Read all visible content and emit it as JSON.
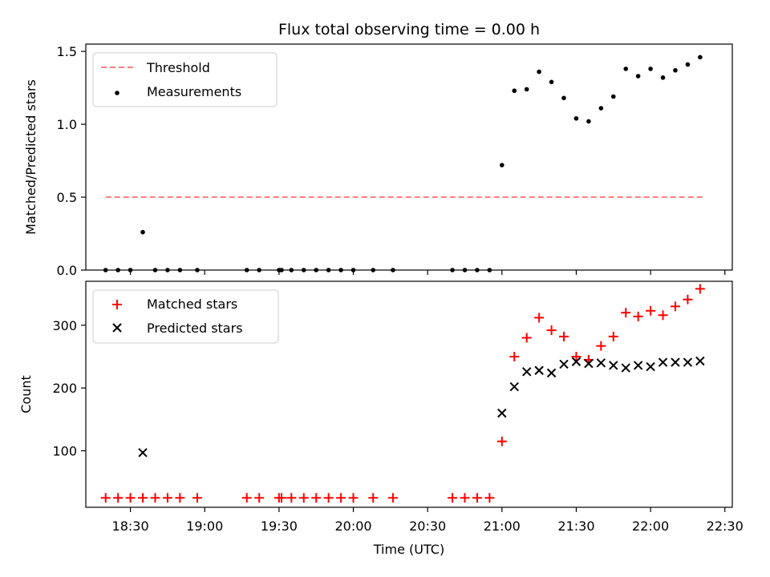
{
  "title": "Flux total observing time = 0.00 h",
  "xlabel": "Time (UTC)",
  "chart_data": [
    {
      "type": "scatter",
      "panel": "top",
      "ylabel": "Matched/Predicted stars",
      "ylim": [
        0,
        1.55
      ],
      "yticks": [
        0.0,
        0.5,
        1.0,
        1.5
      ],
      "ytick_labels": [
        "0.0",
        "0.5",
        "1.0",
        "1.5"
      ],
      "grid": false,
      "legend_position": "top-left",
      "legend": [
        "Threshold",
        "Measurements"
      ],
      "threshold": {
        "name": "Threshold",
        "y": 0.5,
        "x_start": "18:20",
        "x_end": "22:21",
        "color": "#ff7f7f"
      },
      "series": [
        {
          "name": "Measurements",
          "color": "#000000",
          "x": [
            "18:20",
            "18:25",
            "18:30",
            "18:35",
            "18:40",
            "18:45",
            "18:50",
            "18:57",
            "19:17",
            "19:22",
            "19:30",
            "19:31",
            "19:35",
            "19:40",
            "19:45",
            "19:50",
            "19:55",
            "20:00",
            "20:08",
            "20:16",
            "20:40",
            "20:45",
            "20:50",
            "20:55",
            "21:00",
            "21:05",
            "21:10",
            "21:15",
            "21:20",
            "21:25",
            "21:30",
            "21:35",
            "21:40",
            "21:45",
            "21:50",
            "21:55",
            "22:00",
            "22:05",
            "22:10",
            "22:15",
            "22:20"
          ],
          "y": [
            0,
            0,
            0,
            0.26,
            0,
            0,
            0,
            0,
            0,
            0,
            0,
            0,
            0,
            0,
            0,
            0,
            0,
            0,
            0,
            0,
            0,
            0,
            0,
            0,
            0.72,
            1.23,
            1.24,
            1.36,
            1.29,
            1.18,
            1.04,
            1.02,
            1.11,
            1.19,
            1.38,
            1.33,
            1.38,
            1.32,
            1.37,
            1.41,
            1.46
          ]
        }
      ]
    },
    {
      "type": "scatter",
      "panel": "bottom",
      "ylabel": "Count",
      "ylim": [
        10,
        370
      ],
      "yticks": [
        100,
        200,
        300
      ],
      "ytick_labels": [
        "100",
        "200",
        "300"
      ],
      "grid": false,
      "legend_position": "top-left",
      "legend": [
        "Matched stars",
        "Predicted stars"
      ],
      "series": [
        {
          "name": "Matched stars",
          "marker": "+",
          "color": "#ff0000",
          "x": [
            "18:20",
            "18:25",
            "18:30",
            "18:35",
            "18:40",
            "18:45",
            "18:50",
            "18:57",
            "19:17",
            "19:22",
            "19:30",
            "19:31",
            "19:35",
            "19:40",
            "19:45",
            "19:50",
            "19:55",
            "20:00",
            "20:08",
            "20:16",
            "20:40",
            "20:45",
            "20:50",
            "20:55",
            "21:00",
            "21:05",
            "21:10",
            "21:15",
            "21:20",
            "21:25",
            "21:30",
            "21:35",
            "21:40",
            "21:45",
            "21:50",
            "21:55",
            "22:00",
            "22:05",
            "22:10",
            "22:15",
            "22:20"
          ],
          "y": [
            25,
            25,
            25,
            25,
            25,
            25,
            25,
            25,
            25,
            25,
            25,
            25,
            25,
            25,
            25,
            25,
            25,
            25,
            25,
            25,
            25,
            25,
            25,
            25,
            115,
            250,
            280,
            312,
            292,
            282,
            250,
            245,
            267,
            282,
            320,
            314,
            323,
            316,
            330,
            341,
            358
          ]
        },
        {
          "name": "Predicted stars",
          "marker": "x",
          "color": "#000000",
          "x": [
            "18:35",
            "21:00",
            "21:05",
            "21:10",
            "21:15",
            "21:20",
            "21:25",
            "21:30",
            "21:35",
            "21:40",
            "21:45",
            "21:50",
            "21:55",
            "22:00",
            "22:05",
            "22:10",
            "22:15",
            "22:20"
          ],
          "y": [
            97,
            160,
            202,
            226,
            228,
            224,
            238,
            242,
            239,
            240,
            236,
            232,
            236,
            234,
            241,
            241,
            241,
            243
          ]
        }
      ]
    }
  ],
  "xaxis": {
    "ticks": [
      "18:30",
      "19:00",
      "19:30",
      "20:00",
      "20:30",
      "21:00",
      "21:30",
      "22:00",
      "22:30"
    ],
    "range": [
      "18:12",
      "22:33"
    ]
  }
}
